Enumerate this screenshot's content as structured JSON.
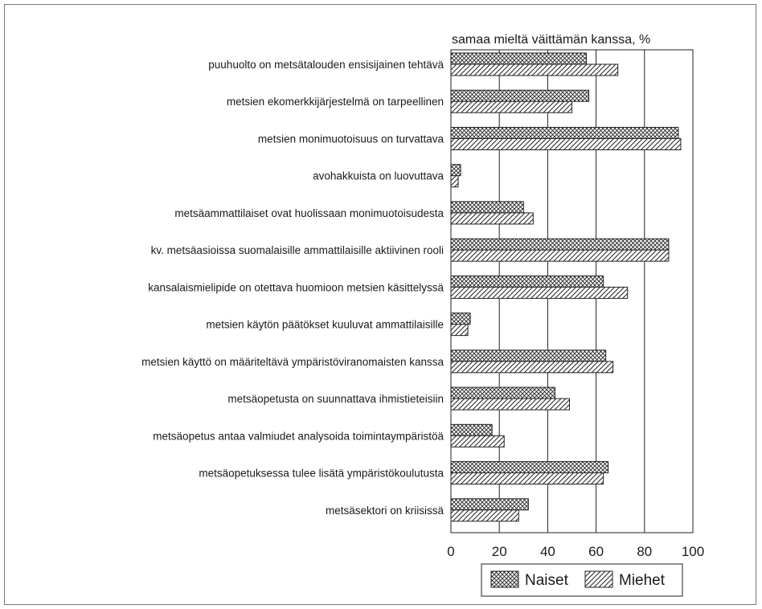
{
  "chart_data": {
    "type": "bar",
    "orientation": "horizontal",
    "title": "samaa mieltä väittämän kanssa, %",
    "xlim": [
      0,
      100
    ],
    "xticks": [
      0,
      20,
      40,
      60,
      80,
      100
    ],
    "grid": true,
    "legend_position": "bottom",
    "categories": [
      "puuhuolto on metsätalouden ensisijainen tehtävä",
      "metsien ekomerkkijärjestelmä on tarpeellinen",
      "metsien monimuotoisuus on turvattava",
      "avohakkuista on luovuttava",
      "metsäammattilaiset ovat huolissaan monimuotoisudesta",
      "kv. metsäasioissa suomalaisille ammattilaisille aktiivinen rooli",
      "kansalaismielipide on otettava huomioon metsien käsittelyssä",
      "metsien käytön päätökset kuuluvat ammattilaisille",
      "metsien käyttö on määriteltävä ympäristöviranomaisten kanssa",
      "metsäopetusta on suunnattava ihmistieteisiin",
      "metsäopetus antaa valmiudet analysoida toimintaympäristöä",
      "metsäopetuksessa tulee lisätä ympäristökoulutusta",
      "metsäsektori on kriisissä"
    ],
    "series": [
      {
        "name": "Naiset",
        "pattern": "crosshatch",
        "values": [
          56,
          57,
          94,
          4,
          30,
          90,
          63,
          8,
          64,
          43,
          17,
          65,
          32
        ]
      },
      {
        "name": "Miehet",
        "pattern": "diagonal",
        "values": [
          69,
          50,
          95,
          3,
          34,
          90,
          73,
          7,
          67,
          49,
          22,
          63,
          28
        ]
      }
    ]
  }
}
